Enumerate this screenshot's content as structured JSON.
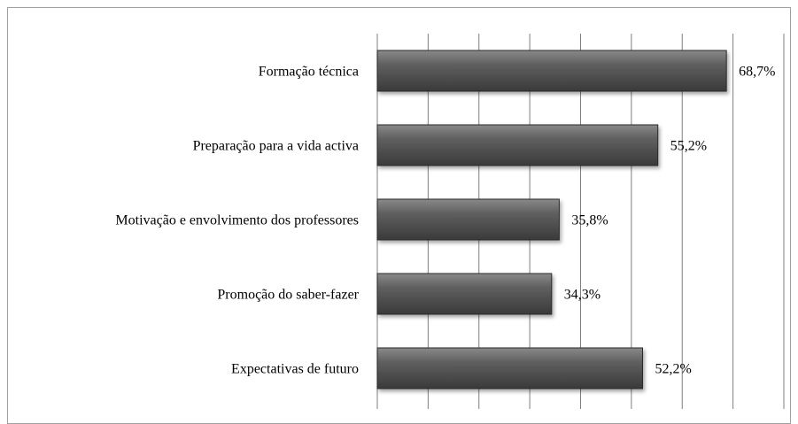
{
  "chart_data": {
    "type": "barh",
    "categories": [
      "Formação técnica",
      "Preparação para a vida activa",
      "Motivação e envolvimento dos professores",
      "Promoção do saber-fazer",
      "Expectativas de futuro"
    ],
    "values": [
      68.7,
      55.2,
      35.8,
      34.3,
      52.2
    ],
    "value_labels": [
      "68,7%",
      "55,2%",
      "35,8%",
      "34,3%",
      "52,2%"
    ],
    "color": "#595959",
    "xlim": [
      0,
      80
    ],
    "xticks": [
      0,
      10,
      20,
      30,
      40,
      50,
      60,
      70,
      80
    ],
    "grid": true
  }
}
